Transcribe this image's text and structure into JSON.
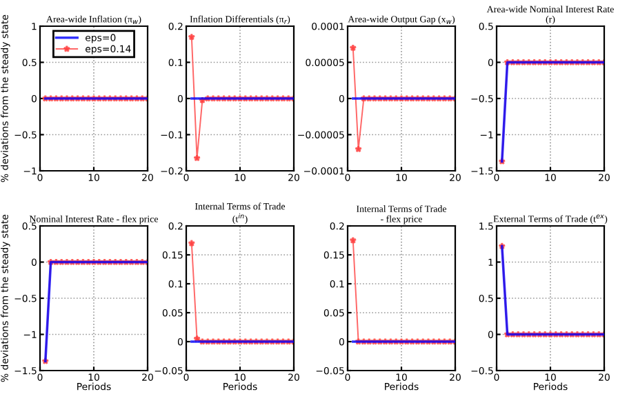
{
  "chart_data": [
    {
      "type": "line",
      "title": "Area-wide Inflation (π$_{w}$)",
      "ylabel": "% deviations from the steady state",
      "x": [
        1,
        2,
        3,
        4,
        5,
        6,
        7,
        8,
        9,
        10,
        11,
        12,
        13,
        14,
        15,
        16,
        17,
        18,
        19,
        20
      ],
      "xlim": [
        0,
        20
      ],
      "xticks": [
        0,
        10,
        20
      ],
      "ylim": [
        -1,
        1
      ],
      "yticks": [
        -1,
        -0.5,
        0,
        0.5,
        1
      ],
      "grid": true,
      "legend": "top",
      "tick_labels": true,
      "series": [
        {
          "name": "eps=0",
          "color": "#0000ff",
          "marker": "none",
          "values": [
            0,
            0,
            0,
            0,
            0,
            0,
            0,
            0,
            0,
            0,
            0,
            0,
            0,
            0,
            0,
            0,
            0,
            0,
            0,
            0
          ]
        },
        {
          "name": "eps=0.14",
          "color": "#ff4040",
          "marker": "star",
          "values": [
            0,
            0,
            0,
            0,
            0,
            0,
            0,
            0,
            0,
            0,
            0,
            0,
            0,
            0,
            0,
            0,
            0,
            0,
            0,
            0
          ]
        }
      ]
    },
    {
      "type": "line",
      "title": "Inflation Differentials (π$_{r}$)",
      "x": [
        1,
        2,
        3,
        4,
        5,
        6,
        7,
        8,
        9,
        10,
        11,
        12,
        13,
        14,
        15,
        16,
        17,
        18,
        19,
        20
      ],
      "xlim": [
        0,
        20
      ],
      "xticks": [
        0,
        10,
        20
      ],
      "ylim": [
        -0.2,
        0.2
      ],
      "yticks": [
        -0.2,
        -0.1,
        0,
        0.1,
        0.2
      ],
      "grid": true,
      "series": [
        {
          "color": "#0000ff",
          "marker": "none",
          "values": [
            0,
            0,
            0,
            0,
            0,
            0,
            0,
            0,
            0,
            0,
            0,
            0,
            0,
            0,
            0,
            0,
            0,
            0,
            0,
            0
          ]
        },
        {
          "color": "#ff4040",
          "marker": "star",
          "values": [
            0.17,
            -0.165,
            -0.005,
            0,
            0,
            0,
            0,
            0,
            0,
            0,
            0,
            0,
            0,
            0,
            0,
            0,
            0,
            0,
            0,
            0
          ]
        }
      ]
    },
    {
      "type": "line",
      "title": "Area-wide Output Gap (x$_{w}$)",
      "x": [
        1,
        2,
        3,
        4,
        5,
        6,
        7,
        8,
        9,
        10,
        11,
        12,
        13,
        14,
        15,
        16,
        17,
        18,
        19,
        20
      ],
      "xlim": [
        0,
        20
      ],
      "xticks": [
        0,
        10,
        20
      ],
      "ylim": [
        -0.0001,
        0.0001
      ],
      "yticks": [
        {
          "value": -0.0001,
          "label": "−0.0001"
        },
        {
          "value": -5e-05,
          "label": "−0.00005"
        },
        {
          "value": 0,
          "label": "0"
        },
        {
          "value": 5e-05,
          "label": "0.00005"
        },
        {
          "value": 0.0001,
          "label": "0.0001"
        }
      ],
      "grid": true,
      "series": [
        {
          "color": "#0000ff",
          "marker": "none",
          "values": [
            0,
            0,
            0,
            0,
            0,
            0,
            0,
            0,
            0,
            0,
            0,
            0,
            0,
            0,
            0,
            0,
            0,
            0,
            0,
            0
          ]
        },
        {
          "color": "#ff4040",
          "marker": "star",
          "values": [
            7e-05,
            -7e-05,
            0,
            0,
            0,
            0,
            0,
            0,
            0,
            0,
            0,
            0,
            0,
            0,
            0,
            0,
            0,
            0,
            0,
            0
          ]
        }
      ]
    },
    {
      "type": "line",
      "title": "Area-wide Nominal Interest Rate\n(r)",
      "x": [
        1,
        2,
        3,
        4,
        5,
        6,
        7,
        8,
        9,
        10,
        11,
        12,
        13,
        14,
        15,
        16,
        17,
        18,
        19,
        20
      ],
      "xlim": [
        0,
        20
      ],
      "xticks": [
        0,
        10,
        20
      ],
      "ylim": [
        -1.5,
        0.5
      ],
      "yticks": [
        -1.5,
        -1,
        -0.5,
        0,
        0.5
      ],
      "grid": true,
      "series": [
        {
          "color": "#0000ff",
          "marker": "none",
          "values": [
            -1.37,
            0,
            0,
            0,
            0,
            0,
            0,
            0,
            0,
            0,
            0,
            0,
            0,
            0,
            0,
            0,
            0,
            0,
            0,
            0
          ]
        },
        {
          "color": "#ff4040",
          "marker": "star",
          "values": [
            -1.37,
            0,
            0,
            0,
            0,
            0,
            0,
            0,
            0,
            0,
            0,
            0,
            0,
            0,
            0,
            0,
            0,
            0,
            0,
            0
          ]
        }
      ]
    },
    {
      "type": "line",
      "title": "Nominal Interest Rate - flex price",
      "xlabel": "Periods",
      "ylabel": "% deviations from the steady state",
      "x": [
        1,
        2,
        3,
        4,
        5,
        6,
        7,
        8,
        9,
        10,
        11,
        12,
        13,
        14,
        15,
        16,
        17,
        18,
        19,
        20
      ],
      "xlim": [
        0,
        20
      ],
      "xticks": [
        0,
        10,
        20
      ],
      "ylim": [
        -1.5,
        0.5
      ],
      "yticks": [
        -1.5,
        -1,
        -0.5,
        0,
        0.5
      ],
      "grid": true,
      "series": [
        {
          "color": "#0000ff",
          "marker": "none",
          "values": [
            -1.37,
            0,
            0,
            0,
            0,
            0,
            0,
            0,
            0,
            0,
            0,
            0,
            0,
            0,
            0,
            0,
            0,
            0,
            0,
            0
          ]
        },
        {
          "color": "#ff4040",
          "marker": "star",
          "values": [
            -1.37,
            0,
            0,
            0,
            0,
            0,
            0,
            0,
            0,
            0,
            0,
            0,
            0,
            0,
            0,
            0,
            0,
            0,
            0,
            0
          ]
        }
      ]
    },
    {
      "type": "line",
      "title": "Internal Terms of Trade\n(t$^{in}$)",
      "xlabel": "Periods",
      "x": [
        1,
        2,
        3,
        4,
        5,
        6,
        7,
        8,
        9,
        10,
        11,
        12,
        13,
        14,
        15,
        16,
        17,
        18,
        19,
        20
      ],
      "xlim": [
        0,
        20
      ],
      "xticks": [
        0,
        10,
        20
      ],
      "ylim": [
        -0.05,
        0.2
      ],
      "yticks": [
        -0.05,
        0,
        0.05,
        0.1,
        0.15,
        0.2
      ],
      "grid": true,
      "series": [
        {
          "color": "#0000ff",
          "marker": "none",
          "values": [
            0,
            0,
            0,
            0,
            0,
            0,
            0,
            0,
            0,
            0,
            0,
            0,
            0,
            0,
            0,
            0,
            0,
            0,
            0,
            0
          ]
        },
        {
          "color": "#ff4040",
          "marker": "star",
          "values": [
            0.17,
            0.005,
            0,
            0,
            0,
            0,
            0,
            0,
            0,
            0,
            0,
            0,
            0,
            0,
            0,
            0,
            0,
            0,
            0,
            0
          ]
        }
      ]
    },
    {
      "type": "line",
      "title": "Internal Terms of Trade\n- flex price",
      "xlabel": "Periods",
      "x": [
        1,
        2,
        3,
        4,
        5,
        6,
        7,
        8,
        9,
        10,
        11,
        12,
        13,
        14,
        15,
        16,
        17,
        18,
        19,
        20
      ],
      "xlim": [
        0,
        20
      ],
      "xticks": [
        0,
        10,
        20
      ],
      "ylim": [
        -0.05,
        0.2
      ],
      "yticks": [
        -0.05,
        0,
        0.05,
        0.1,
        0.15,
        0.2
      ],
      "grid": true,
      "series": [
        {
          "color": "#0000ff",
          "marker": "none",
          "values": [
            0,
            0,
            0,
            0,
            0,
            0,
            0,
            0,
            0,
            0,
            0,
            0,
            0,
            0,
            0,
            0,
            0,
            0,
            0,
            0
          ]
        },
        {
          "color": "#ff4040",
          "marker": "star",
          "values": [
            0.175,
            0,
            0,
            0,
            0,
            0,
            0,
            0,
            0,
            0,
            0,
            0,
            0,
            0,
            0,
            0,
            0,
            0,
            0,
            0
          ]
        }
      ]
    },
    {
      "type": "line",
      "title": "External Terms of Trade (t$^{ex}$)",
      "xlabel": "Periods",
      "x": [
        1,
        2,
        3,
        4,
        5,
        6,
        7,
        8,
        9,
        10,
        11,
        12,
        13,
        14,
        15,
        16,
        17,
        18,
        19,
        20
      ],
      "xlim": [
        0,
        20
      ],
      "xticks": [
        0,
        10,
        20
      ],
      "ylim": [
        -0.5,
        1.5
      ],
      "yticks": [
        -0.5,
        0,
        0.5,
        1,
        1.5
      ],
      "grid": true,
      "series": [
        {
          "color": "#0000ff",
          "marker": "none",
          "values": [
            1.22,
            0,
            0,
            0,
            0,
            0,
            0,
            0,
            0,
            0,
            0,
            0,
            0,
            0,
            0,
            0,
            0,
            0,
            0,
            0
          ]
        },
        {
          "color": "#ff4040",
          "marker": "star",
          "values": [
            1.22,
            0,
            0,
            0,
            0,
            0,
            0,
            0,
            0,
            0,
            0,
            0,
            0,
            0,
            0,
            0,
            0,
            0,
            0,
            0
          ]
        }
      ]
    }
  ]
}
